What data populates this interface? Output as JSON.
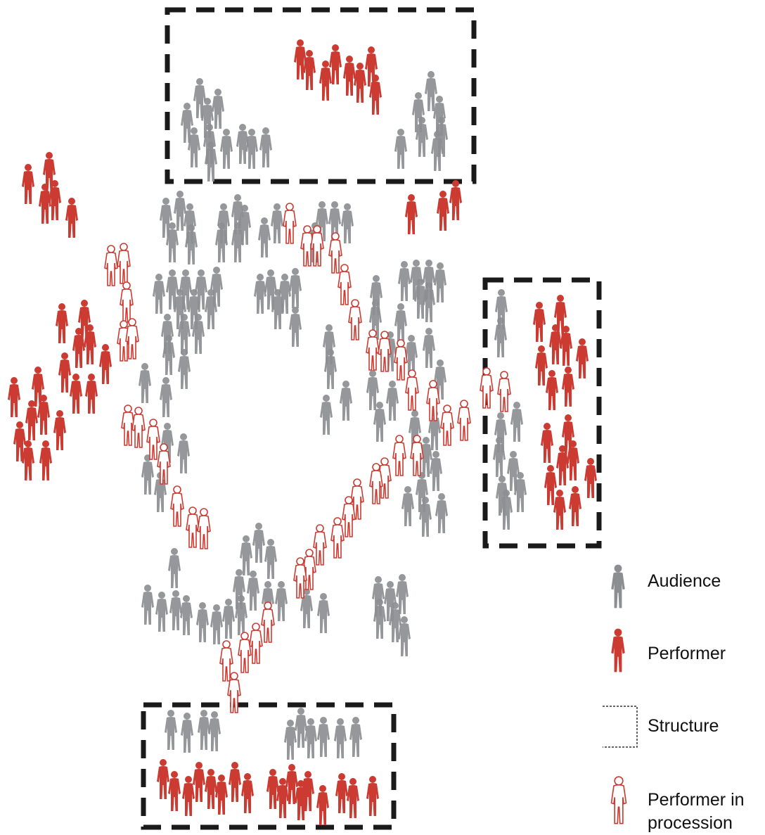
{
  "colors": {
    "audience": "#8c8e91",
    "performer": "#cc3b32",
    "procession_outline": "#cc3b32",
    "structure": "#1a1a1a",
    "background": "#ffffff"
  },
  "legend": {
    "audience": "Audience",
    "performer": "Performer",
    "structure": "Structure",
    "procession": "Performer in\nprocession"
  },
  "icons": {
    "audience": "person-silhouette-grey-icon",
    "performer": "person-silhouette-red-icon",
    "structure": "dashed-rectangle-icon",
    "procession": "person-outline-red-icon"
  }
}
